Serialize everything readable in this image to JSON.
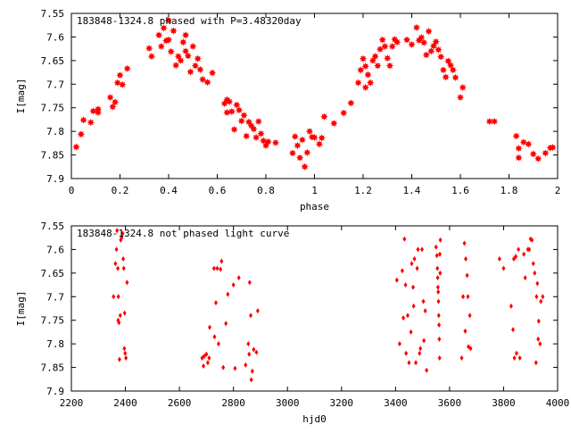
{
  "chart_data": [
    {
      "type": "scatter",
      "title": "183848-1324.8 phased with P=3.48320day",
      "xlabel": "phase",
      "ylabel": "I[mag]",
      "xlim": [
        0,
        2
      ],
      "ylim": [
        7.55,
        7.9
      ],
      "y_inverted": true,
      "grid": false,
      "xticks": [
        "0",
        "0.2",
        "0.4",
        "0.6",
        "0.8",
        "1",
        "1.2",
        "1.4",
        "1.6",
        "1.8",
        "2"
      ],
      "yticks": [
        "7.55",
        "7.6",
        "7.65",
        "7.7",
        "7.75",
        "7.8",
        "7.85",
        "7.9"
      ],
      "marker_color": "#ff0000",
      "marker": "star",
      "points": [
        [
          0.02,
          7.833
        ],
        [
          0.04,
          7.806
        ],
        [
          0.05,
          7.776
        ],
        [
          0.08,
          7.781
        ],
        [
          0.09,
          7.757
        ],
        [
          0.11,
          7.753
        ],
        [
          0.11,
          7.76
        ],
        [
          0.16,
          7.728
        ],
        [
          0.17,
          7.748
        ],
        [
          0.18,
          7.738
        ],
        [
          0.19,
          7.697
        ],
        [
          0.2,
          7.681
        ],
        [
          0.21,
          7.701
        ],
        [
          0.23,
          7.667
        ],
        [
          0.32,
          7.624
        ],
        [
          0.33,
          7.641
        ],
        [
          0.36,
          7.596
        ],
        [
          0.37,
          7.62
        ],
        [
          0.38,
          7.581
        ],
        [
          0.39,
          7.608
        ],
        [
          0.4,
          7.565
        ],
        [
          0.4,
          7.606
        ],
        [
          0.41,
          7.631
        ],
        [
          0.42,
          7.587
        ],
        [
          0.43,
          7.66
        ],
        [
          0.44,
          7.641
        ],
        [
          0.45,
          7.65
        ],
        [
          0.46,
          7.611
        ],
        [
          0.47,
          7.596
        ],
        [
          0.47,
          7.63
        ],
        [
          0.48,
          7.64
        ],
        [
          0.49,
          7.674
        ],
        [
          0.5,
          7.62
        ],
        [
          0.51,
          7.661
        ],
        [
          0.52,
          7.646
        ],
        [
          0.53,
          7.669
        ],
        [
          0.54,
          7.69
        ],
        [
          0.56,
          7.696
        ],
        [
          0.58,
          7.676
        ],
        [
          0.63,
          7.741
        ],
        [
          0.64,
          7.733
        ],
        [
          0.64,
          7.76
        ],
        [
          0.65,
          7.737
        ],
        [
          0.66,
          7.758
        ],
        [
          0.67,
          7.796
        ],
        [
          0.68,
          7.744
        ],
        [
          0.69,
          7.755
        ],
        [
          0.7,
          7.778
        ],
        [
          0.71,
          7.766
        ],
        [
          0.72,
          7.81
        ],
        [
          0.73,
          7.78
        ],
        [
          0.74,
          7.788
        ],
        [
          0.75,
          7.795
        ],
        [
          0.76,
          7.813
        ],
        [
          0.77,
          7.779
        ],
        [
          0.78,
          7.805
        ],
        [
          0.79,
          7.82
        ],
        [
          0.8,
          7.83
        ],
        [
          0.81,
          7.822
        ],
        [
          0.84,
          7.824
        ],
        [
          0.91,
          7.846
        ],
        [
          0.92,
          7.811
        ],
        [
          0.93,
          7.83
        ],
        [
          0.94,
          7.856
        ],
        [
          0.95,
          7.818
        ],
        [
          0.96,
          7.875
        ],
        [
          0.97,
          7.845
        ],
        [
          0.98,
          7.8
        ],
        [
          0.99,
          7.812
        ],
        [
          1.0,
          7.813
        ],
        [
          1.02,
          7.827
        ],
        [
          1.03,
          7.814
        ],
        [
          1.04,
          7.769
        ],
        [
          1.08,
          7.783
        ],
        [
          1.12,
          7.761
        ],
        [
          1.15,
          7.74
        ],
        [
          1.18,
          7.697
        ],
        [
          1.19,
          7.67
        ],
        [
          1.2,
          7.646
        ],
        [
          1.21,
          7.662
        ],
        [
          1.21,
          7.707
        ],
        [
          1.22,
          7.68
        ],
        [
          1.23,
          7.697
        ],
        [
          1.24,
          7.65
        ],
        [
          1.25,
          7.641
        ],
        [
          1.26,
          7.661
        ],
        [
          1.27,
          7.626
        ],
        [
          1.28,
          7.606
        ],
        [
          1.29,
          7.62
        ],
        [
          1.3,
          7.645
        ],
        [
          1.31,
          7.661
        ],
        [
          1.32,
          7.62
        ],
        [
          1.33,
          7.605
        ],
        [
          1.34,
          7.611
        ],
        [
          1.38,
          7.606
        ],
        [
          1.4,
          7.616
        ],
        [
          1.42,
          7.58
        ],
        [
          1.43,
          7.607
        ],
        [
          1.44,
          7.601
        ],
        [
          1.45,
          7.612
        ],
        [
          1.46,
          7.638
        ],
        [
          1.47,
          7.588
        ],
        [
          1.48,
          7.63
        ],
        [
          1.49,
          7.619
        ],
        [
          1.5,
          7.61
        ],
        [
          1.51,
          7.627
        ],
        [
          1.52,
          7.642
        ],
        [
          1.53,
          7.67
        ],
        [
          1.54,
          7.685
        ],
        [
          1.55,
          7.651
        ],
        [
          1.56,
          7.66
        ],
        [
          1.57,
          7.67
        ],
        [
          1.58,
          7.686
        ],
        [
          1.6,
          7.728
        ],
        [
          1.61,
          7.707
        ],
        [
          1.72,
          7.779
        ],
        [
          1.74,
          7.779
        ],
        [
          1.83,
          7.81
        ],
        [
          1.84,
          7.836
        ],
        [
          1.84,
          7.856
        ],
        [
          1.86,
          7.823
        ],
        [
          1.88,
          7.827
        ],
        [
          1.9,
          7.848
        ],
        [
          1.92,
          7.858
        ],
        [
          1.95,
          7.846
        ],
        [
          1.97,
          7.835
        ],
        [
          1.98,
          7.834
        ]
      ]
    },
    {
      "type": "scatter",
      "title": "183848-1324.8 not phased light curve",
      "xlabel": "hjd0",
      "ylabel": "I[mag]",
      "xlim": [
        2200,
        4000
      ],
      "ylim": [
        7.55,
        7.9
      ],
      "y_inverted": true,
      "grid": false,
      "xticks": [
        "2200",
        "2400",
        "2600",
        "2800",
        "3000",
        "3200",
        "3400",
        "3600",
        "3800",
        "4000"
      ],
      "yticks": [
        "7.55",
        "7.6",
        "7.65",
        "7.7",
        "7.75",
        "7.8",
        "7.85",
        "7.9"
      ],
      "marker_color": "#ff0000",
      "marker": "diamond",
      "points": [
        [
          2356,
          7.7
        ],
        [
          2363,
          7.63
        ],
        [
          2367,
          7.6
        ],
        [
          2369,
          7.56
        ],
        [
          2372,
          7.64
        ],
        [
          2373,
          7.75
        ],
        [
          2374,
          7.7
        ],
        [
          2376,
          7.755
        ],
        [
          2378,
          7.833
        ],
        [
          2381,
          7.74
        ],
        [
          2383,
          7.58
        ],
        [
          2386,
          7.575
        ],
        [
          2390,
          7.566
        ],
        [
          2392,
          7.62
        ],
        [
          2394,
          7.64
        ],
        [
          2396,
          7.81
        ],
        [
          2397,
          7.735
        ],
        [
          2399,
          7.82
        ],
        [
          2402,
          7.83
        ],
        [
          2406,
          7.67
        ],
        [
          2684,
          7.83
        ],
        [
          2689,
          7.847
        ],
        [
          2692,
          7.826
        ],
        [
          2700,
          7.822
        ],
        [
          2705,
          7.84
        ],
        [
          2710,
          7.83
        ],
        [
          2712,
          7.765
        ],
        [
          2728,
          7.64
        ],
        [
          2730,
          7.785
        ],
        [
          2735,
          7.713
        ],
        [
          2740,
          7.64
        ],
        [
          2745,
          7.8
        ],
        [
          2752,
          7.642
        ],
        [
          2756,
          7.625
        ],
        [
          2762,
          7.85
        ],
        [
          2772,
          7.757
        ],
        [
          2779,
          7.695
        ],
        [
          2800,
          7.675
        ],
        [
          2806,
          7.852
        ],
        [
          2820,
          7.66
        ],
        [
          2845,
          7.845
        ],
        [
          2855,
          7.8
        ],
        [
          2858,
          7.822
        ],
        [
          2860,
          7.67
        ],
        [
          2864,
          7.74
        ],
        [
          2866,
          7.876
        ],
        [
          2870,
          7.858
        ],
        [
          2875,
          7.812
        ],
        [
          2885,
          7.818
        ],
        [
          2890,
          7.73
        ],
        [
          3405,
          7.665
        ],
        [
          3415,
          7.8
        ],
        [
          3425,
          7.645
        ],
        [
          3429,
          7.745
        ],
        [
          3433,
          7.578
        ],
        [
          3437,
          7.675
        ],
        [
          3439,
          7.82
        ],
        [
          3445,
          7.74
        ],
        [
          3450,
          7.84
        ],
        [
          3457,
          7.775
        ],
        [
          3460,
          7.63
        ],
        [
          3465,
          7.68
        ],
        [
          3467,
          7.72
        ],
        [
          3470,
          7.62
        ],
        [
          3475,
          7.84
        ],
        [
          3480,
          7.64
        ],
        [
          3483,
          7.6
        ],
        [
          3489,
          7.82
        ],
        [
          3492,
          7.81
        ],
        [
          3498,
          7.6
        ],
        [
          3503,
          7.71
        ],
        [
          3505,
          7.793
        ],
        [
          3510,
          7.73
        ],
        [
          3515,
          7.856
        ],
        [
          3550,
          7.595
        ],
        [
          3553,
          7.613
        ],
        [
          3555,
          7.64
        ],
        [
          3556,
          7.66
        ],
        [
          3557,
          7.68
        ],
        [
          3558,
          7.69
        ],
        [
          3559,
          7.71
        ],
        [
          3560,
          7.74
        ],
        [
          3561,
          7.76
        ],
        [
          3562,
          7.79
        ],
        [
          3563,
          7.83
        ],
        [
          3564,
          7.61
        ],
        [
          3565,
          7.65
        ],
        [
          3566,
          7.58
        ],
        [
          3645,
          7.83
        ],
        [
          3650,
          7.7
        ],
        [
          3655,
          7.587
        ],
        [
          3658,
          7.773
        ],
        [
          3660,
          7.62
        ],
        [
          3665,
          7.655
        ],
        [
          3668,
          7.7
        ],
        [
          3670,
          7.806
        ],
        [
          3675,
          7.74
        ],
        [
          3678,
          7.81
        ],
        [
          3785,
          7.62
        ],
        [
          3800,
          7.64
        ],
        [
          3828,
          7.72
        ],
        [
          3835,
          7.77
        ],
        [
          3838,
          7.62
        ],
        [
          3840,
          7.83
        ],
        [
          3845,
          7.615
        ],
        [
          3848,
          7.82
        ],
        [
          3855,
          7.6
        ],
        [
          3860,
          7.83
        ],
        [
          3875,
          7.61
        ],
        [
          3880,
          7.66
        ],
        [
          3890,
          7.6
        ],
        [
          3895,
          7.6
        ],
        [
          3900,
          7.578
        ],
        [
          3905,
          7.58
        ],
        [
          3910,
          7.63
        ],
        [
          3915,
          7.65
        ],
        [
          3920,
          7.84
        ],
        [
          3922,
          7.7
        ],
        [
          3925,
          7.672
        ],
        [
          3928,
          7.79
        ],
        [
          3930,
          7.752
        ],
        [
          3935,
          7.8
        ],
        [
          3938,
          7.71
        ],
        [
          3945,
          7.7
        ]
      ]
    }
  ]
}
